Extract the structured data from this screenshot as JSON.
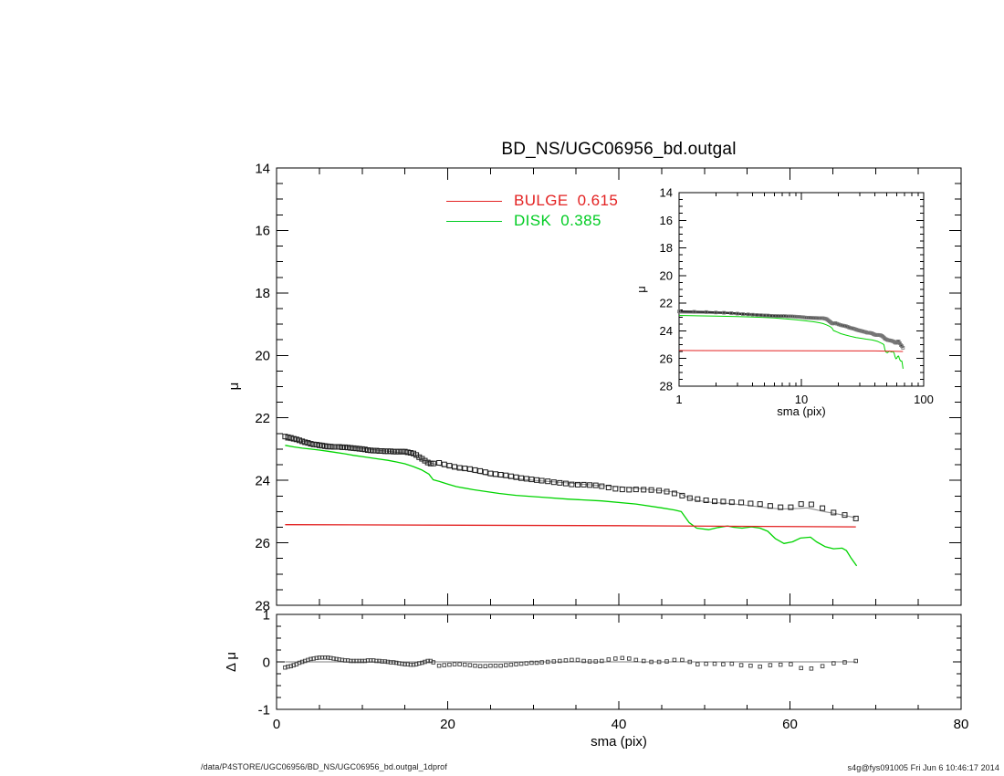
{
  "title": "BD_NS/UGC06956_bd.outgal",
  "legend": {
    "entries": [
      {
        "label": "BULGE",
        "value": "0.615",
        "color": "#e32222"
      },
      {
        "label": "DISK",
        "value": "0.385",
        "color": "#00cc22"
      }
    ]
  },
  "footer": {
    "left": "/data/P4STORE/UGC06956/BD_NS/UGC06956_bd.outgal_1dprof",
    "right": "s4g@fys091005  Fri Jun  6 10:46:17 2014"
  },
  "chart_data": {
    "type": "line",
    "description": "Galaxy surface-brightness profile with bulge/disk decomposition, inset log-radius view and residual panel",
    "colors": {
      "data_marker": "#1c1c1c",
      "residual_marker": "#3a3a3a",
      "model_line": "#8f8f8f",
      "bulge_line": "#e32222",
      "disk_line": "#00d400",
      "zero_line": "#9a9a9a",
      "inset_band": "#333333",
      "inset_marker": "#777777"
    },
    "main_plot": {
      "ylabel": "μ",
      "xlim": [
        0,
        80
      ],
      "ylim_top_bottom": [
        14,
        28
      ],
      "xticks": [
        0,
        20,
        40,
        60,
        80
      ],
      "yticks": [
        14,
        16,
        18,
        20,
        22,
        24,
        26,
        28
      ],
      "x_minor_step": 5,
      "y_minor_step": 0.5,
      "x_tick_labels_visible": false
    },
    "inset_plot": {
      "xlabel": "sma (pix)",
      "ylabel": "μ",
      "xscale": "log",
      "xlim": [
        1,
        100
      ],
      "ylim_top_bottom": [
        14,
        28
      ],
      "xticks": [
        1,
        10,
        100
      ],
      "yticks": [
        14,
        16,
        18,
        20,
        22,
        24,
        26,
        28
      ],
      "y_minor_step": 0.5
    },
    "residual_plot": {
      "xlabel": "sma (pix)",
      "ylabel": "Δ μ",
      "xlim": [
        0,
        80
      ],
      "ylim_top_bottom": [
        1,
        -1
      ],
      "xticks": [
        0,
        20,
        40,
        60,
        80
      ],
      "yticks": [
        1,
        0,
        -1
      ],
      "x_minor_step": 5,
      "y_minor_step": 0.25
    },
    "series": {
      "data": {
        "name": "measured surface-brightness profile",
        "marker": "open-square",
        "x": [
          1.0,
          1.33,
          1.67,
          2.0,
          2.33,
          2.67,
          3.0,
          3.33,
          3.67,
          4.0,
          4.33,
          4.67,
          5.0,
          5.33,
          5.67,
          6.0,
          6.33,
          6.67,
          7.0,
          7.33,
          7.67,
          8.0,
          8.33,
          8.67,
          9.0,
          9.33,
          9.67,
          10.0,
          10.33,
          10.67,
          11.0,
          11.33,
          11.67,
          12.0,
          12.33,
          12.67,
          13.0,
          13.33,
          13.67,
          14.0,
          14.33,
          14.67,
          15.0,
          15.33,
          15.67,
          16.0,
          16.33,
          16.67,
          17.0,
          17.33,
          17.67,
          18.0,
          18.33,
          19.0,
          19.6,
          20.2,
          20.8,
          21.4,
          22.0,
          22.6,
          23.2,
          23.8,
          24.4,
          25.0,
          25.6,
          26.2,
          26.8,
          27.4,
          28.0,
          28.6,
          29.2,
          29.8,
          30.4,
          31.0,
          31.7,
          32.4,
          33.1,
          33.8,
          34.5,
          35.2,
          35.9,
          36.6,
          37.3,
          38.0,
          38.8,
          39.6,
          40.4,
          41.2,
          42.0,
          42.9,
          43.8,
          44.7,
          45.6,
          46.5,
          47.4,
          48.3,
          49.2,
          50.2,
          51.2,
          52.2,
          53.2,
          54.3,
          55.4,
          56.5,
          57.7,
          58.9,
          60.1,
          61.3,
          62.5,
          63.8,
          65.1,
          66.4,
          67.7
        ],
        "y": [
          22.6,
          22.62,
          22.64,
          22.67,
          22.69,
          22.72,
          22.75,
          22.78,
          22.8,
          22.83,
          22.85,
          22.86,
          22.88,
          22.89,
          22.91,
          22.92,
          22.92,
          22.93,
          22.93,
          22.93,
          22.94,
          22.94,
          22.95,
          22.96,
          22.97,
          22.98,
          22.99,
          23.0,
          23.01,
          23.03,
          23.04,
          23.05,
          23.05,
          23.06,
          23.06,
          23.07,
          23.07,
          23.07,
          23.08,
          23.08,
          23.08,
          23.08,
          23.08,
          23.1,
          23.12,
          23.14,
          23.19,
          23.26,
          23.31,
          23.37,
          23.43,
          23.46,
          23.46,
          23.44,
          23.49,
          23.53,
          23.57,
          23.6,
          23.62,
          23.64,
          23.67,
          23.7,
          23.74,
          23.78,
          23.8,
          23.82,
          23.84,
          23.87,
          23.9,
          23.93,
          23.95,
          23.97,
          23.99,
          24.01,
          24.03,
          24.06,
          24.08,
          24.1,
          24.13,
          24.14,
          24.14,
          24.15,
          24.16,
          24.19,
          24.23,
          24.27,
          24.29,
          24.3,
          24.29,
          24.3,
          24.31,
          24.33,
          24.36,
          24.42,
          24.49,
          24.57,
          24.6,
          24.64,
          24.67,
          24.68,
          24.7,
          24.71,
          24.74,
          24.76,
          24.82,
          24.86,
          24.86,
          24.76,
          24.77,
          24.89,
          25.03,
          25.11,
          25.22
        ]
      },
      "model": {
        "name": "bulge+disk model (total)",
        "x": [
          1,
          3,
          5,
          8,
          10,
          13,
          15,
          16,
          17,
          18,
          19,
          20,
          22,
          25,
          28,
          31,
          34,
          37,
          40,
          43,
          46,
          47,
          48,
          49,
          51,
          53,
          55,
          57,
          59,
          61,
          62,
          63,
          64,
          65,
          66,
          67,
          67.7
        ],
        "y": [
          22.72,
          22.75,
          22.79,
          22.91,
          22.98,
          23.07,
          23.13,
          23.2,
          23.33,
          23.44,
          23.52,
          23.58,
          23.68,
          23.86,
          23.95,
          24.02,
          24.08,
          24.15,
          24.2,
          24.28,
          24.36,
          24.4,
          24.54,
          24.64,
          24.71,
          24.74,
          24.8,
          24.87,
          24.92,
          24.9,
          24.88,
          24.94,
          25.0,
          25.05,
          25.1,
          25.16,
          25.2
        ]
      },
      "disk": {
        "name": "DISK",
        "x": [
          1,
          2,
          3,
          4,
          5,
          6,
          7,
          8,
          9,
          10,
          11,
          12,
          13,
          14,
          15,
          16,
          17,
          17.8,
          18.3,
          19,
          20,
          21,
          23,
          26,
          28,
          31,
          34,
          38,
          42,
          45,
          46.5,
          47.3,
          48.2,
          49.1,
          50.5,
          51.6,
          52.7,
          53.4,
          54.4,
          55.5,
          56.5,
          57.4,
          58.3,
          59.3,
          60.3,
          61.2,
          62.4,
          63.1,
          64.1,
          65.1,
          66.1,
          66.6,
          67.1,
          67.8
        ],
        "y": [
          22.88,
          22.93,
          22.97,
          23.0,
          23.03,
          23.07,
          23.11,
          23.15,
          23.2,
          23.24,
          23.28,
          23.32,
          23.36,
          23.41,
          23.47,
          23.56,
          23.67,
          23.8,
          23.98,
          24.03,
          24.12,
          24.2,
          24.3,
          24.42,
          24.48,
          24.54,
          24.6,
          24.66,
          24.76,
          24.88,
          24.95,
          25.0,
          25.35,
          25.53,
          25.58,
          25.51,
          25.46,
          25.5,
          25.53,
          25.49,
          25.53,
          25.63,
          25.87,
          26.02,
          25.97,
          25.85,
          25.82,
          25.97,
          26.12,
          26.19,
          26.17,
          26.25,
          26.47,
          26.74
        ]
      },
      "bulge": {
        "name": "BULGE",
        "x": [
          1,
          40,
          67.7
        ],
        "y": [
          25.42,
          25.45,
          25.49
        ]
      },
      "residual": {
        "name": "data minus model",
        "x_ref": "data",
        "y": [
          -0.12,
          -0.1,
          -0.09,
          -0.07,
          -0.05,
          -0.02,
          0.0,
          0.02,
          0.04,
          0.06,
          0.07,
          0.08,
          0.09,
          0.09,
          0.09,
          0.09,
          0.08,
          0.07,
          0.06,
          0.05,
          0.04,
          0.03,
          0.03,
          0.02,
          0.02,
          0.02,
          0.02,
          0.02,
          0.02,
          0.03,
          0.03,
          0.03,
          0.02,
          0.02,
          0.01,
          0.01,
          0.0,
          -0.01,
          -0.01,
          -0.02,
          -0.03,
          -0.04,
          -0.05,
          -0.05,
          -0.06,
          -0.06,
          -0.05,
          -0.03,
          -0.02,
          0.0,
          0.02,
          0.02,
          -0.01,
          -0.08,
          -0.07,
          -0.06,
          -0.05,
          -0.05,
          -0.06,
          -0.07,
          -0.08,
          -0.09,
          -0.09,
          -0.08,
          -0.08,
          -0.08,
          -0.07,
          -0.06,
          -0.05,
          -0.04,
          -0.03,
          -0.02,
          -0.02,
          -0.01,
          0.0,
          0.01,
          0.02,
          0.03,
          0.04,
          0.04,
          0.02,
          0.01,
          0.01,
          0.02,
          0.05,
          0.07,
          0.08,
          0.07,
          0.04,
          0.02,
          0.0,
          0.0,
          0.01,
          0.04,
          0.04,
          0.0,
          -0.05,
          -0.04,
          -0.04,
          -0.05,
          -0.04,
          -0.07,
          -0.08,
          -0.1,
          -0.07,
          -0.06,
          -0.05,
          -0.13,
          -0.14,
          -0.09,
          -0.03,
          -0.01,
          0.02
        ]
      }
    }
  }
}
